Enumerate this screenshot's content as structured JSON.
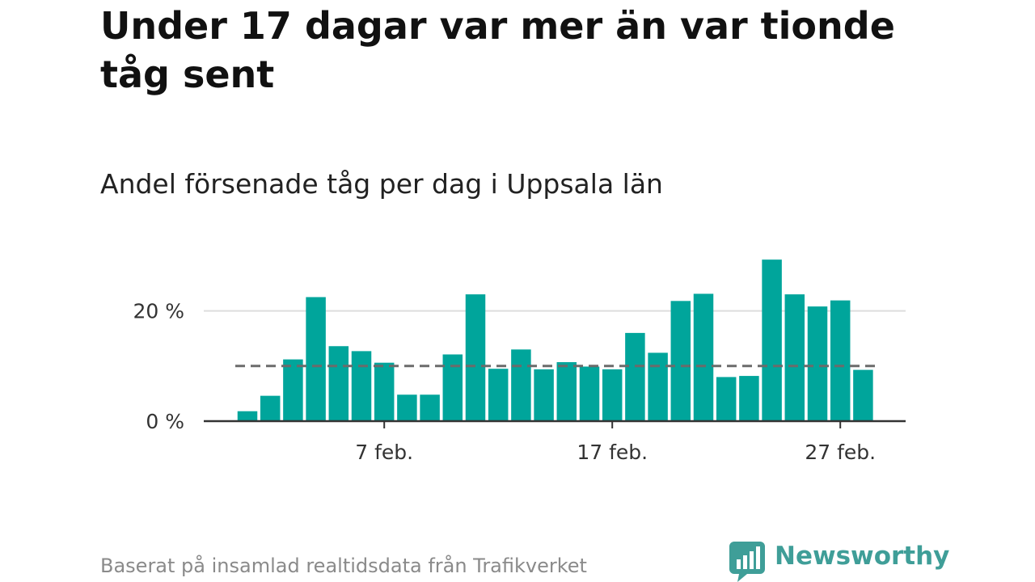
{
  "title": "Under 17 dagar var mer än var tionde tåg sent",
  "subtitle": "Andel försenade tåg per dag i Uppsala län",
  "source": "Baserat på insamlad realtidsdata från Trafikverket",
  "brand": {
    "name": "Newsworthy",
    "color": "#3f9e98",
    "icon": "newsworthy-logo-icon"
  },
  "colors": {
    "bar": "#00a59b",
    "reference_line": "#6b6b6b",
    "grid": "#dddddd",
    "axis": "#333333"
  },
  "chart_data": {
    "type": "bar",
    "x_type": "date",
    "categories": [
      "1 feb.",
      "2 feb.",
      "3 feb.",
      "4 feb.",
      "5 feb.",
      "6 feb.",
      "7 feb.",
      "8 feb.",
      "9 feb.",
      "10 feb.",
      "11 feb.",
      "12 feb.",
      "13 feb.",
      "14 feb.",
      "15 feb.",
      "16 feb.",
      "17 feb.",
      "18 feb.",
      "19 feb.",
      "20 feb.",
      "21 feb.",
      "22 feb.",
      "23 feb.",
      "24 feb.",
      "25 feb.",
      "26 feb.",
      "27 feb.",
      "28 feb."
    ],
    "values": [
      1.8,
      4.6,
      11.2,
      22.5,
      13.6,
      12.7,
      10.6,
      4.8,
      4.8,
      12.1,
      23.0,
      9.5,
      13.0,
      9.4,
      10.7,
      9.9,
      9.4,
      16.0,
      12.4,
      21.8,
      23.1,
      8.0,
      8.2,
      29.3,
      23.0,
      20.8,
      21.9,
      9.3
    ],
    "reference_line": 10,
    "ylim": [
      0,
      30
    ],
    "yticks": [
      {
        "value": 0,
        "label": "0 %"
      },
      {
        "value": 20,
        "label": "20 %"
      }
    ],
    "xticks": [
      {
        "index": 6,
        "label": "7 feb."
      },
      {
        "index": 16,
        "label": "17 feb."
      },
      {
        "index": 26,
        "label": "27 feb."
      }
    ],
    "grid": "horizontal",
    "xlabel": "",
    "ylabel": ""
  }
}
